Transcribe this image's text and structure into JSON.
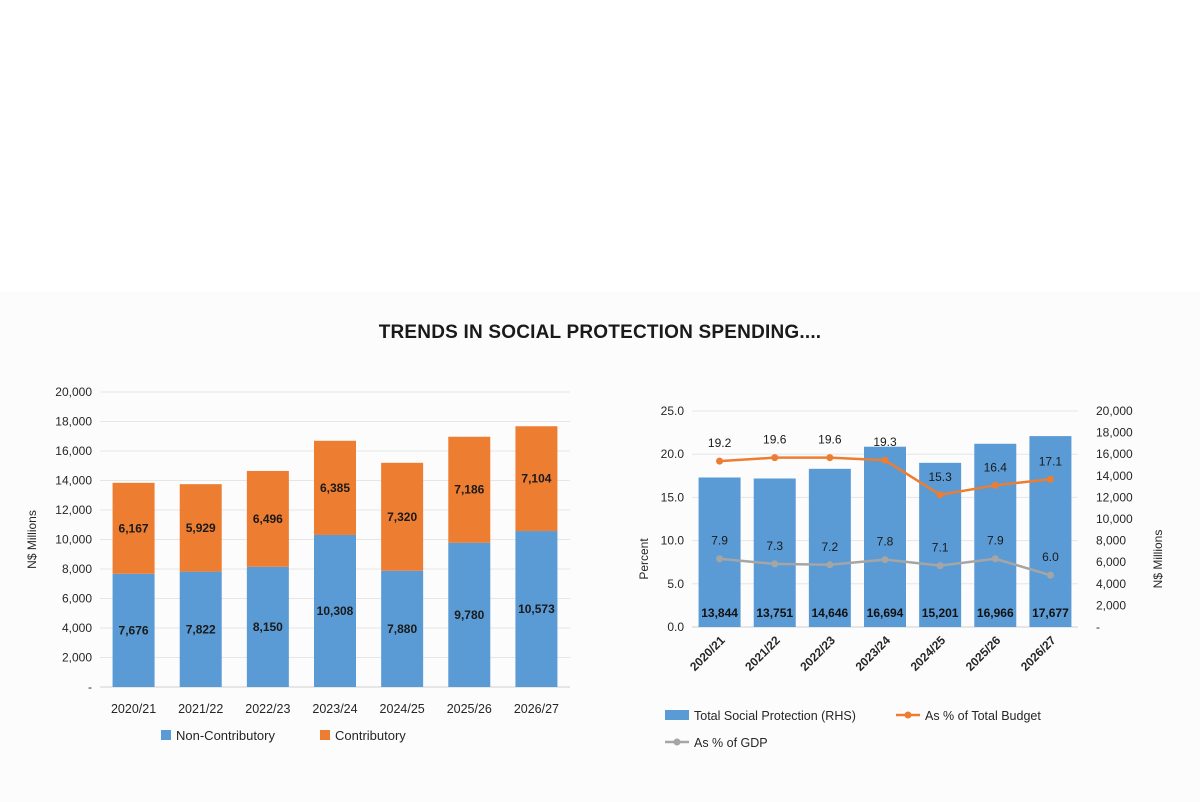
{
  "title": "TRENDS IN SOCIAL PROTECTION SPENDING....",
  "colors": {
    "non_contributory": "#5b9bd5",
    "contributory": "#ed7d31",
    "gdp_line": "#a5a5a5",
    "grid": "#e6e6e6",
    "axis_text": "#262626"
  },
  "chart_data": [
    {
      "type": "bar",
      "stacked": true,
      "categories": [
        "2020/21",
        "2021/22",
        "2022/23",
        "2023/24",
        "2024/25",
        "2025/26",
        "2026/27"
      ],
      "series": [
        {
          "name": "Non-Contributory",
          "values": [
            7676,
            7822,
            8150,
            10308,
            7880,
            9780,
            10573
          ],
          "labels": [
            "7,676",
            "7,822",
            "8,150",
            "10,308",
            "7,880",
            "9,780",
            "10,573"
          ]
        },
        {
          "name": "Contributory",
          "values": [
            6167,
            5929,
            6496,
            6385,
            7320,
            7186,
            7104
          ],
          "labels": [
            "6,167",
            "5,929",
            "6,496",
            "6,385",
            "7,320",
            "7,186",
            "7,104"
          ]
        }
      ],
      "ylabel": "N$ Millions",
      "ylim": [
        0,
        20000
      ],
      "yticks": [
        "-",
        "2,000",
        "4,000",
        "6,000",
        "8,000",
        "10,000",
        "12,000",
        "14,000",
        "16,000",
        "18,000",
        "20,000"
      ],
      "legend": "bottom"
    },
    {
      "type": "bar+line",
      "categories": [
        "2020/21",
        "2021/22",
        "2022/23",
        "2023/24",
        "2024/25",
        "2025/26",
        "2026/27"
      ],
      "bars": {
        "name": "Total Social Protection (RHS)",
        "axis": "right",
        "values": [
          13844,
          13751,
          14646,
          16694,
          15201,
          16966,
          17677
        ],
        "labels": [
          "13,844",
          "13,751",
          "14,646",
          "16,694",
          "15,201",
          "16,966",
          "17,677"
        ]
      },
      "lines": [
        {
          "name": "As % of Total Budget",
          "axis": "left",
          "values": [
            19.2,
            19.6,
            19.6,
            19.3,
            15.3,
            16.4,
            17.1
          ],
          "labels": [
            "19.2",
            "19.6",
            "19.6",
            "19.3",
            "15.3",
            "16.4",
            "17.1"
          ]
        },
        {
          "name": "As % of GDP",
          "axis": "left",
          "values": [
            7.9,
            7.3,
            7.2,
            7.8,
            7.1,
            7.9,
            6.0
          ],
          "labels": [
            "7.9",
            "7.3",
            "7.2",
            "7.8",
            "7.1",
            "7.9",
            "6.0"
          ]
        }
      ],
      "ylabel_left": "Percent",
      "ylim_left": [
        0,
        25
      ],
      "yticks_left": [
        "0.0",
        "5.0",
        "10.0",
        "15.0",
        "20.0",
        "25.0"
      ],
      "ylabel_right": "N$ Millions",
      "ylim_right": [
        0,
        20000
      ],
      "yticks_right": [
        "-",
        "2,000",
        "4,000",
        "6,000",
        "8,000",
        "10,000",
        "12,000",
        "14,000",
        "16,000",
        "18,000",
        "20,000"
      ],
      "legend": "bottom"
    }
  ]
}
